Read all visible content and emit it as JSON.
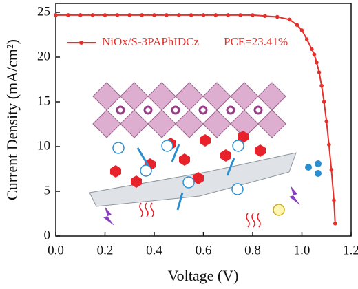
{
  "chart_data": {
    "type": "line",
    "x_label": "Voltage (V)",
    "y_label": "Current Density (mA/cm²)",
    "x": [
      0.0,
      0.05,
      0.1,
      0.15,
      0.2,
      0.25,
      0.3,
      0.35,
      0.4,
      0.45,
      0.5,
      0.55,
      0.6,
      0.65,
      0.7,
      0.75,
      0.8,
      0.85,
      0.9,
      0.95,
      0.98,
      1.0,
      1.02,
      1.04,
      1.05,
      1.06,
      1.07,
      1.08,
      1.09,
      1.1,
      1.11,
      1.12,
      1.13,
      1.135
    ],
    "series": [
      {
        "name": "NiOx/S-3PAPhIDCz",
        "color": "#e3302a",
        "values": [
          24.7,
          24.7,
          24.7,
          24.7,
          24.7,
          24.7,
          24.7,
          24.7,
          24.7,
          24.7,
          24.7,
          24.7,
          24.7,
          24.7,
          24.7,
          24.7,
          24.7,
          24.6,
          24.5,
          24.2,
          23.6,
          23.0,
          22.0,
          20.9,
          20.3,
          19.4,
          18.3,
          16.8,
          15.0,
          12.8,
          10.2,
          7.4,
          4.0,
          1.4
        ]
      }
    ],
    "annotation": "PCE=23.41%",
    "xlim": [
      0,
      1.2
    ],
    "xticks": [
      {
        "value": 0,
        "label": "0.0"
      },
      {
        "value": 0.2,
        "label": "0.2"
      },
      {
        "value": 0.4,
        "label": "0.4"
      },
      {
        "value": 0.6,
        "label": "0.6"
      },
      {
        "value": 0.8,
        "label": "0.8"
      },
      {
        "value": 1.0,
        "label": "1.0"
      },
      {
        "value": 1.2,
        "label": "1.2"
      }
    ],
    "ylim": [
      0,
      26
    ],
    "yticks": [
      0,
      5,
      10,
      15,
      20,
      25
    ],
    "legend": "upper left"
  }
}
